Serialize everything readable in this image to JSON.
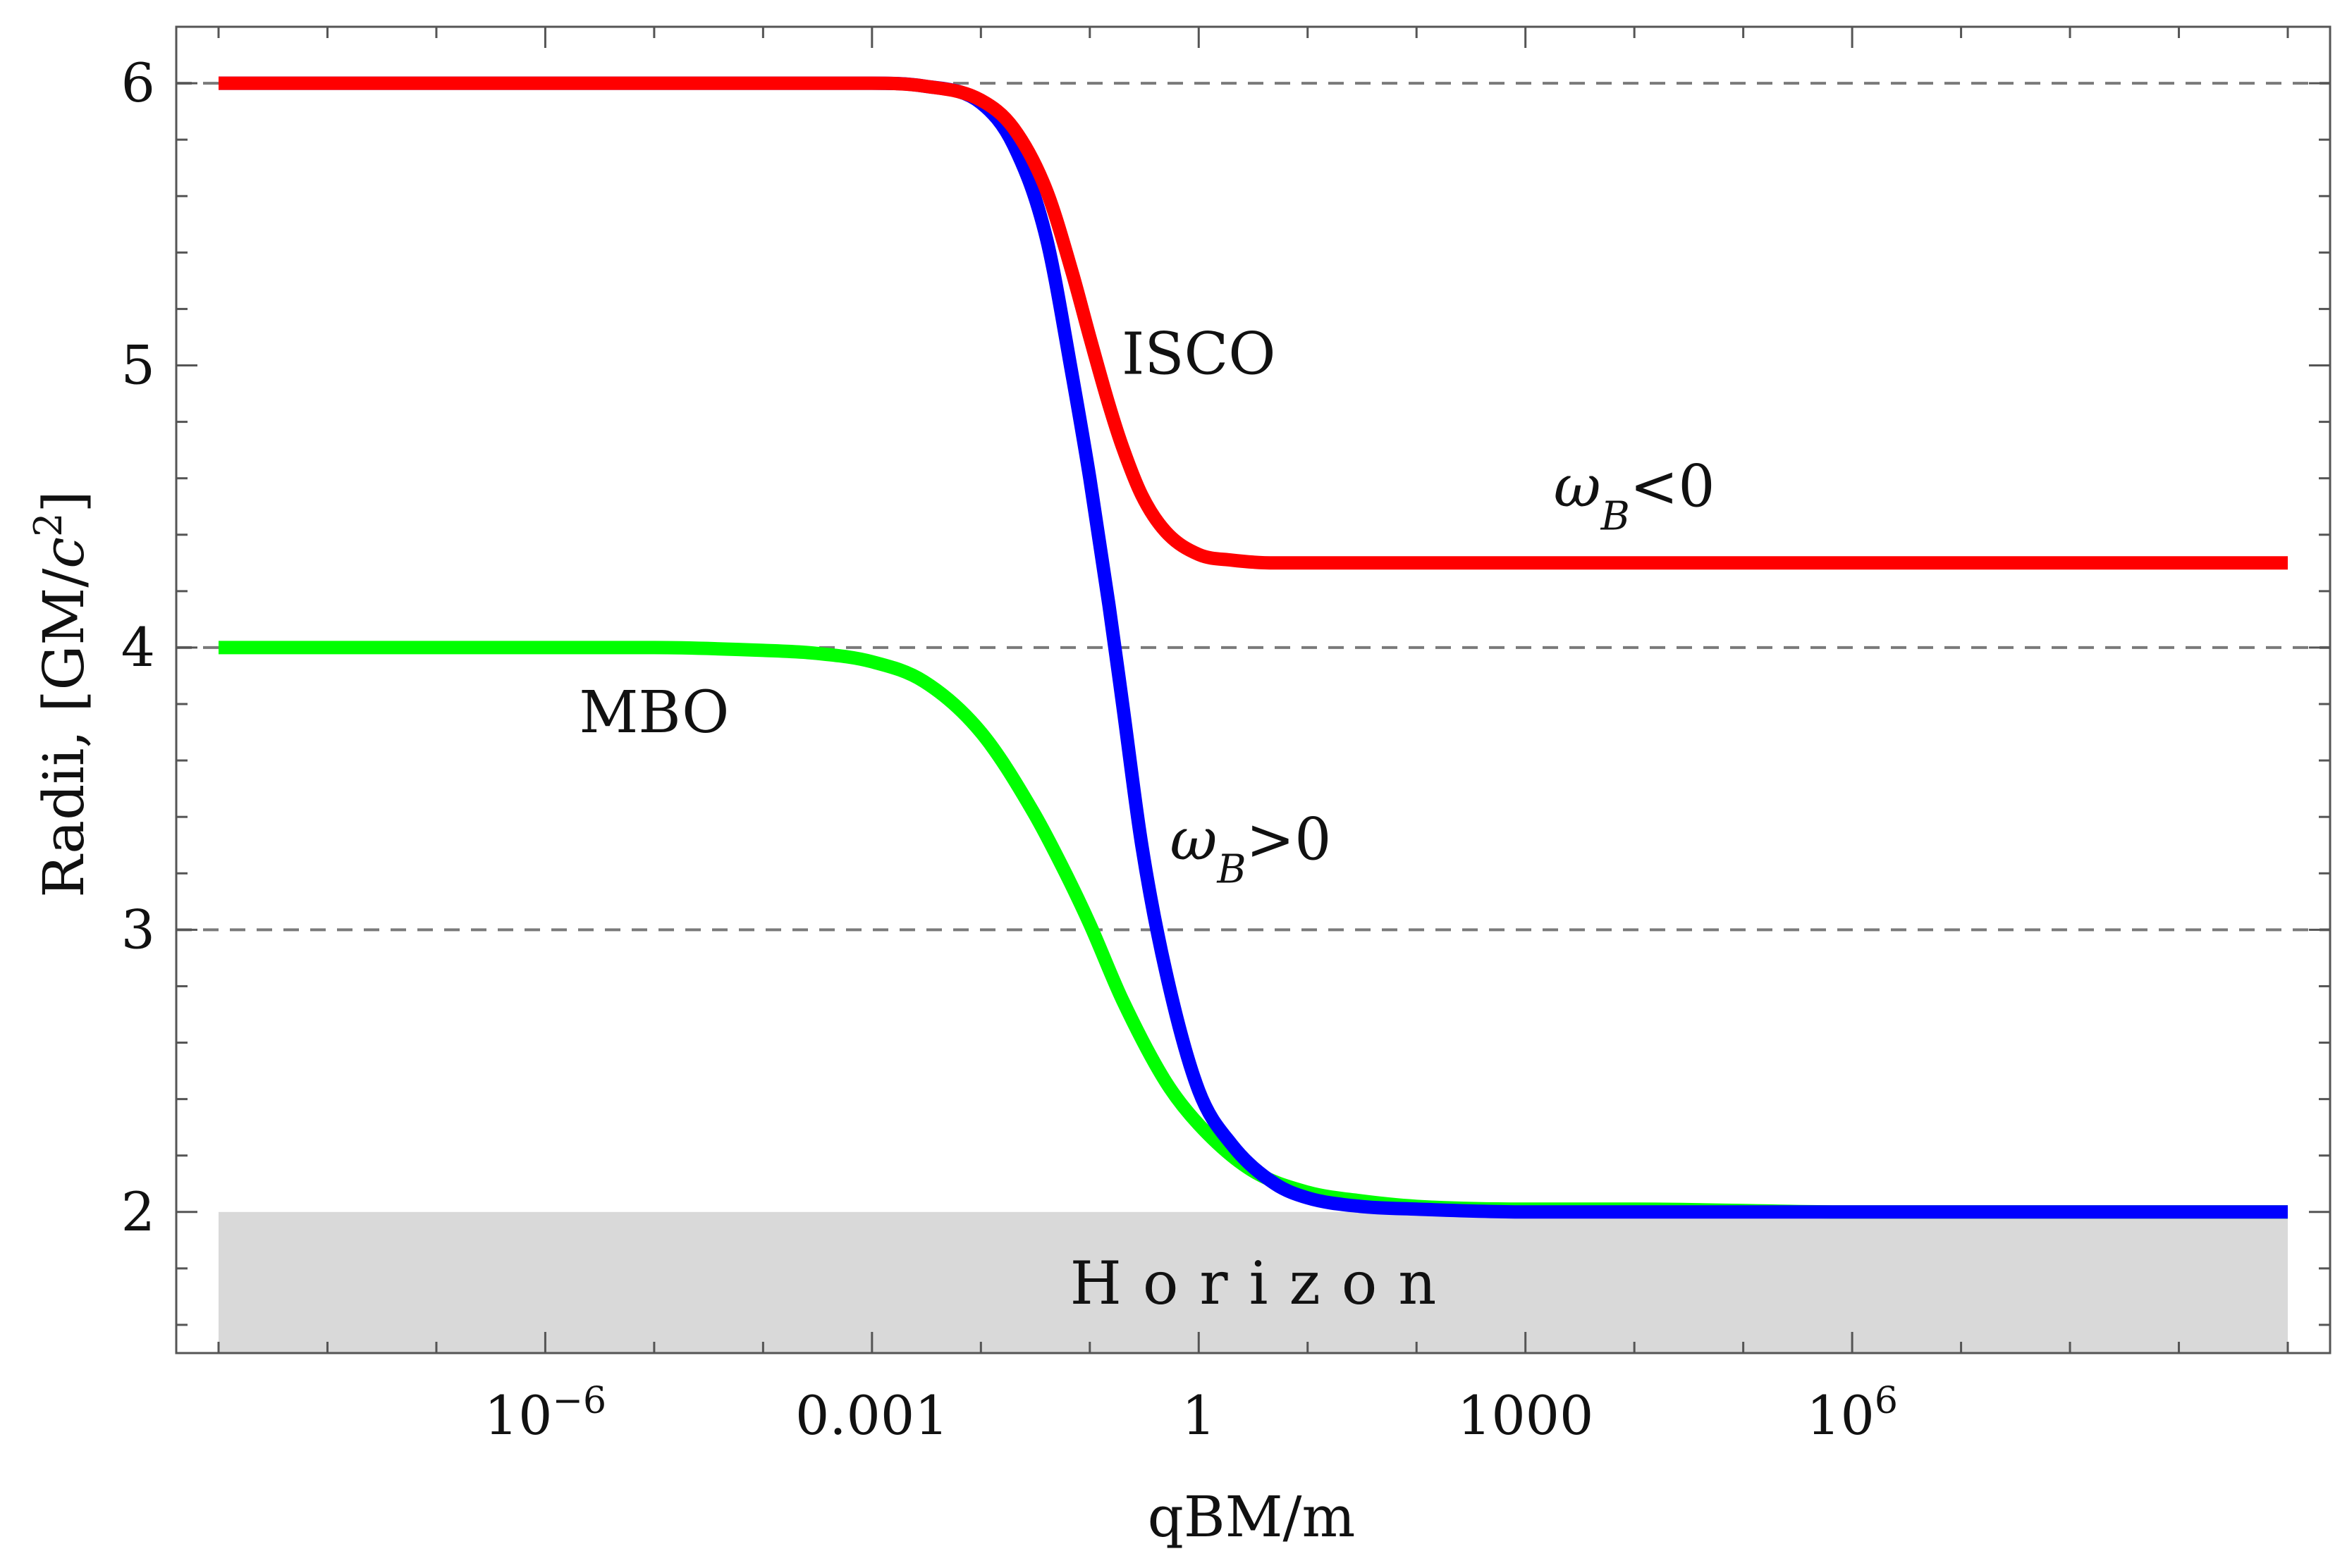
{
  "chart_data": {
    "type": "line",
    "xscale": "log",
    "xlabel": "qBM/m",
    "ylabel": "Radii,  [GM/c²]",
    "ylabel_parts": {
      "prefix": "Radii,  [GM/",
      "italic": "c",
      "sup": "2",
      "suffix": "]"
    },
    "xlim": [
      1e-09,
      10000000000.0
    ],
    "ylim": [
      1.5,
      6.2
    ],
    "yticks": [
      2,
      3,
      4,
      5,
      6
    ],
    "ytick_labels": [
      "2",
      "3",
      "4",
      "5",
      "6"
    ],
    "xticks": [
      {
        "value": 1e-06,
        "base": "10",
        "exp": "−6"
      },
      {
        "value": 0.001,
        "label": "0.001"
      },
      {
        "value": 1,
        "label": "1"
      },
      {
        "value": 1000,
        "label": "1000"
      },
      {
        "value": 1000000.0,
        "base": "10",
        "exp": "6"
      }
    ],
    "reference_lines": [
      6,
      4,
      3
    ],
    "shaded_region": {
      "label": "Horizon",
      "y_from": 1.5,
      "y_to": 2,
      "color": "#d9d9d9"
    },
    "series": [
      {
        "name": "ISCO ωB<0",
        "color": "#ff0000",
        "x": [
          1e-09,
          0.0001,
          0.001,
          0.003,
          0.01,
          0.02,
          0.04,
          0.07,
          0.1,
          0.15,
          0.2,
          0.3,
          0.5,
          1,
          2,
          5,
          10,
          100,
          10000.0,
          1000000.0,
          100000000.0,
          10000000000.0
        ],
        "values": [
          6.0,
          6.0,
          6.0,
          5.99,
          5.94,
          5.84,
          5.62,
          5.32,
          5.1,
          4.86,
          4.71,
          4.54,
          4.41,
          4.33,
          4.31,
          4.3,
          4.3,
          4.3,
          4.3,
          4.3,
          4.3,
          4.3
        ]
      },
      {
        "name": "ISCO ωB>0",
        "color": "#0000ff",
        "x": [
          1e-09,
          0.0001,
          0.001,
          0.003,
          0.01,
          0.02,
          0.04,
          0.07,
          0.1,
          0.15,
          0.2,
          0.3,
          0.5,
          1,
          2,
          5,
          10,
          30,
          100,
          1000,
          10000.0,
          1000000.0,
          100000000.0,
          10000000000.0
        ],
        "values": [
          6.0,
          6.0,
          6.0,
          5.99,
          5.93,
          5.78,
          5.45,
          4.95,
          4.6,
          4.15,
          3.8,
          3.3,
          2.85,
          2.43,
          2.24,
          2.1,
          2.05,
          2.02,
          2.01,
          2.0,
          2.0,
          2.0,
          2.0,
          2.0
        ]
      },
      {
        "name": "MBO",
        "color": "#00ff00",
        "x": [
          1e-09,
          1e-05,
          0.0001,
          0.0003,
          0.001,
          0.003,
          0.01,
          0.03,
          0.06,
          0.1,
          0.2,
          0.5,
          1,
          3,
          10,
          30,
          100,
          1000,
          10000.0,
          1000000.0,
          100000000.0,
          10000000000.0
        ],
        "values": [
          4.0,
          4.0,
          3.99,
          3.98,
          3.95,
          3.88,
          3.7,
          3.42,
          3.2,
          3.02,
          2.75,
          2.46,
          2.31,
          2.15,
          2.07,
          2.04,
          2.02,
          2.01,
          2.01,
          2.0,
          2.0,
          2.0
        ]
      }
    ],
    "annotations": [
      {
        "id": "isco",
        "text": "ISCO",
        "x": 1,
        "y": 4.97
      },
      {
        "id": "wneg",
        "symbol": "ω",
        "sub": "B",
        "rest": "<0",
        "x": 10000.0,
        "y": 4.5
      },
      {
        "id": "wpos",
        "symbol": "ω",
        "sub": "B",
        "rest": ">0",
        "x": 3,
        "y": 3.25
      },
      {
        "id": "mbo",
        "text": "MBO",
        "x": 1e-05,
        "y": 3.7
      }
    ]
  }
}
